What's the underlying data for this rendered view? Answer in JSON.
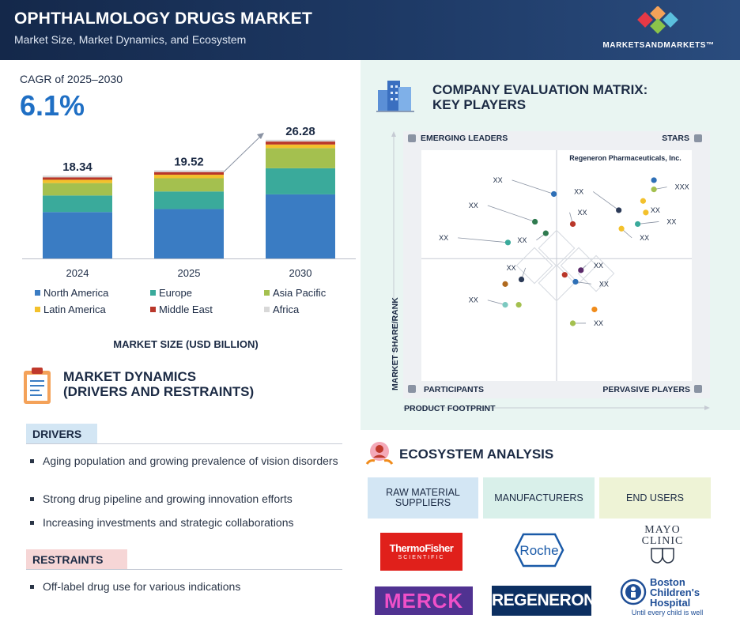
{
  "header": {
    "title": "OPHTHALMOLOGY DRUGS MARKET",
    "subtitle": "Market Size, Market Dynamics, and Ecosystem",
    "brand": "MARKETSANDMARKETS™"
  },
  "cagr": {
    "label": "CAGR of 2025–2030",
    "value": "6.1%"
  },
  "chart_data": {
    "type": "bar",
    "stacked": true,
    "categories": [
      "2024",
      "2025",
      "2030"
    ],
    "totals": [
      "18.34",
      "19.52",
      "26.28"
    ],
    "total_values": [
      18.34,
      19.52,
      26.28
    ],
    "xlabel": "MARKET SIZE (USD BILLION)",
    "legend_position": "bottom",
    "series": [
      {
        "name": "North America",
        "color": "#3a7cc3",
        "share": [
          0.56,
          0.56,
          0.54
        ]
      },
      {
        "name": "Europe",
        "color": "#3aaa9b",
        "share": [
          0.2,
          0.2,
          0.22
        ]
      },
      {
        "name": "Asia Pacific",
        "color": "#a4c04f",
        "share": [
          0.15,
          0.15,
          0.17
        ]
      },
      {
        "name": "Latin America",
        "color": "#f3c12c",
        "share": [
          0.04,
          0.04,
          0.03
        ]
      },
      {
        "name": "Middle East",
        "color": "#b9372a",
        "share": [
          0.03,
          0.03,
          0.025
        ]
      },
      {
        "name": "Africa",
        "color": "#d8d8d8",
        "share": [
          0.02,
          0.02,
          0.015
        ]
      }
    ]
  },
  "market_dynamics": {
    "title_line1": "MARKET DYNAMICS",
    "title_line2": "(DRIVERS AND RESTRAINTS)",
    "drivers_label": "DRIVERS",
    "drivers": [
      "Aging population and growing prevalence of vision disorders",
      "Strong drug pipeline and growing innovation efforts",
      "Increasing investments and strategic collaborations"
    ],
    "restraints_label": "RESTRAINTS",
    "restraints": [
      "Off-label drug use for various indications"
    ]
  },
  "matrix": {
    "title_line1": "COMPANY EVALUATION MATRIX:",
    "title_line2": "KEY PLAYERS",
    "quadrants": {
      "top_left": "EMERGING LEADERS",
      "top_right": "STARS",
      "bottom_left": "PARTICIPANTS",
      "bottom_right": "PERVASIVE PLAYERS"
    },
    "y_axis": "MARKET SHARE/RANK",
    "x_axis": "PRODUCT FOOTPRINT",
    "highlight_label": "Regeneron Pharmaceuticals, Inc.",
    "points": [
      {
        "x": 0.86,
        "y": 0.87,
        "color": "#2e6fb6",
        "label": "",
        "lx": 0,
        "ly": 0
      },
      {
        "x": 0.86,
        "y": 0.83,
        "color": "#a4c04f",
        "label": "XXX",
        "lx": 0.92,
        "ly": 0.83
      },
      {
        "x": 0.82,
        "y": 0.78,
        "color": "#f3c12c",
        "label": "",
        "lx": 0,
        "ly": 0
      },
      {
        "x": 0.73,
        "y": 0.74,
        "color": "#2b3a57",
        "label": "XX",
        "lx": 0.6,
        "ly": 0.81
      },
      {
        "x": 0.83,
        "y": 0.73,
        "color": "#f3c12c",
        "label": "XX",
        "lx": 0.83,
        "ly": 0.73
      },
      {
        "x": 0.49,
        "y": 0.81,
        "color": "#2e6fb6",
        "label": "XX",
        "lx": 0.3,
        "ly": 0.86
      },
      {
        "x": 0.42,
        "y": 0.69,
        "color": "#2f7a4f",
        "label": "XX",
        "lx": 0.21,
        "ly": 0.75
      },
      {
        "x": 0.56,
        "y": 0.68,
        "color": "#b9372a",
        "label": "XX",
        "lx": 0.56,
        "ly": 0.72
      },
      {
        "x": 0.8,
        "y": 0.68,
        "color": "#3aaa9b",
        "label": "XX",
        "lx": 0.89,
        "ly": 0.68
      },
      {
        "x": 0.74,
        "y": 0.66,
        "color": "#f3c12c",
        "label": "XX",
        "lx": 0.79,
        "ly": 0.61
      },
      {
        "x": 0.46,
        "y": 0.64,
        "color": "#2f7a4f",
        "label": "XX",
        "lx": 0.39,
        "ly": 0.6
      },
      {
        "x": 0.32,
        "y": 0.6,
        "color": "#3aaa9b",
        "label": "XX",
        "lx": 0.1,
        "ly": 0.61
      },
      {
        "x": 0.53,
        "y": 0.46,
        "color": "#b9372a",
        "label": "",
        "lx": 0,
        "ly": 0
      },
      {
        "x": 0.59,
        "y": 0.48,
        "color": "#5a2a6a",
        "label": "XX",
        "lx": 0.62,
        "ly": 0.49
      },
      {
        "x": 0.37,
        "y": 0.44,
        "color": "#2b3a57",
        "label": "XX",
        "lx": 0.35,
        "ly": 0.48
      },
      {
        "x": 0.57,
        "y": 0.43,
        "color": "#2e6fb6",
        "label": "XX",
        "lx": 0.64,
        "ly": 0.41
      },
      {
        "x": 0.31,
        "y": 0.42,
        "color": "#b06a1f",
        "label": "",
        "lx": 0,
        "ly": 0
      },
      {
        "x": 0.31,
        "y": 0.33,
        "color": "#7cc9c0",
        "label": "XX",
        "lx": 0.21,
        "ly": 0.34
      },
      {
        "x": 0.36,
        "y": 0.33,
        "color": "#a4c04f",
        "label": "",
        "lx": 0,
        "ly": 0
      },
      {
        "x": 0.64,
        "y": 0.31,
        "color": "#f08c1c",
        "label": "",
        "lx": 0,
        "ly": 0
      },
      {
        "x": 0.56,
        "y": 0.25,
        "color": "#a4c04f",
        "label": "XX",
        "lx": 0.62,
        "ly": 0.24
      }
    ]
  },
  "ecosystem": {
    "title": "ECOSYSTEM ANALYSIS",
    "columns": [
      {
        "label": "RAW MATERIAL SUPPLIERS",
        "color": "#d3e6f4"
      },
      {
        "label": "MANUFACTURERS",
        "color": "#d9f0ea"
      },
      {
        "label": "END USERS",
        "color": "#eef3d6"
      }
    ],
    "logos": {
      "thermo_line1": "ThermoFisher",
      "thermo_line2": "SCIENTIFIC",
      "merck": "MERCK",
      "roche": "Roche",
      "regeneron": "REGENERON",
      "mayo_line1": "MAYO",
      "mayo_line2": "CLINIC",
      "boston_line1": "Boston",
      "boston_line2": "Children's",
      "boston_line3": "Hospital",
      "boston_tagline": "Until every child is well"
    }
  }
}
